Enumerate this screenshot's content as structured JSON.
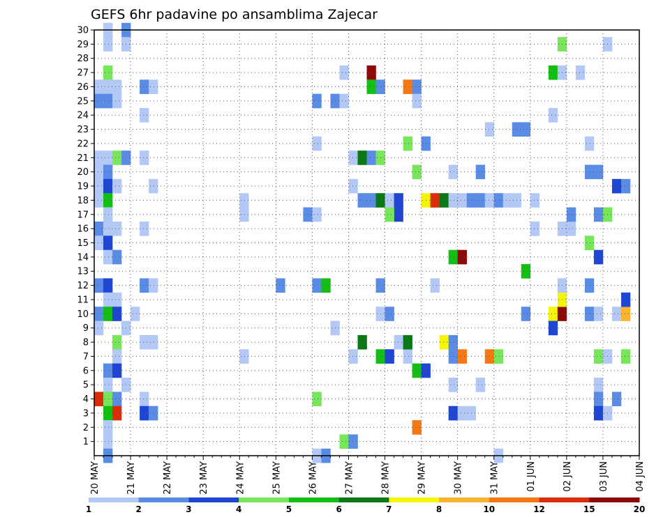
{
  "chart_data": {
    "type": "heatmap",
    "title": "GEFS 6hr padavine po ansamblima Zajecar",
    "xlabel": "",
    "ylabel": "",
    "x_tick_labels": [
      "20 MAY",
      "21 MAY",
      "22 MAY",
      "23 MAY",
      "24 MAY",
      "25 MAY",
      "26 MAY",
      "27 MAY",
      "28 MAY",
      "29 MAY",
      "30 MAY",
      "31 MAY",
      "01 JUN",
      "02 JUN",
      "03 JUN",
      "04 JUN"
    ],
    "y_tick_labels": [
      "1",
      "2",
      "3",
      "4",
      "5",
      "6",
      "7",
      "8",
      "9",
      "10",
      "11",
      "12",
      "13",
      "14",
      "15",
      "16",
      "17",
      "18",
      "19",
      "20",
      "21",
      "22",
      "23",
      "24",
      "25",
      "26",
      "27",
      "28",
      "29",
      "30"
    ],
    "x_range_days": [
      0,
      15
    ],
    "y_range_members": [
      0,
      30
    ],
    "grid": true,
    "color_scale": {
      "levels": [
        "1",
        "2",
        "3",
        "4",
        "5",
        "6",
        "7",
        "8",
        "10",
        "12",
        "15",
        "20"
      ],
      "colors": [
        "#b4c8f5",
        "#5a8ce6",
        "#1e46d2",
        "#78e65a",
        "#14be14",
        "#0a7814",
        "#f5f50a",
        "#fab432",
        "#f57814",
        "#dc2d0a",
        "#8c0a0a"
      ]
    },
    "cells": [
      [
        0.25,
        30,
        0
      ],
      [
        0.25,
        29,
        0
      ],
      [
        0.25,
        30,
        0
      ],
      [
        0.75,
        30,
        1
      ],
      [
        0.75,
        29,
        0
      ],
      [
        0.25,
        27,
        3
      ],
      [
        0.25,
        26,
        0
      ],
      [
        0.0,
        26,
        0
      ],
      [
        0.5,
        26,
        0
      ],
      [
        0.0,
        25,
        1
      ],
      [
        0.25,
        25,
        1
      ],
      [
        0.5,
        25,
        0
      ],
      [
        1.25,
        26,
        1
      ],
      [
        1.5,
        26,
        0
      ],
      [
        1.25,
        24,
        0
      ],
      [
        0.0,
        21,
        0
      ],
      [
        0.25,
        21,
        0
      ],
      [
        0.5,
        21,
        3
      ],
      [
        0.75,
        21,
        1
      ],
      [
        1.25,
        21,
        0
      ],
      [
        0.0,
        20,
        0
      ],
      [
        0.25,
        20,
        1
      ],
      [
        0.0,
        19,
        0
      ],
      [
        0.25,
        19,
        2
      ],
      [
        0.5,
        19,
        0
      ],
      [
        1.5,
        19,
        0
      ],
      [
        0.0,
        18,
        0
      ],
      [
        0.25,
        18,
        4
      ],
      [
        0.25,
        17,
        0
      ],
      [
        0.0,
        16,
        1
      ],
      [
        0.25,
        16,
        0
      ],
      [
        0.5,
        16,
        0
      ],
      [
        1.25,
        16,
        0
      ],
      [
        0.0,
        15,
        0
      ],
      [
        0.25,
        15,
        2
      ],
      [
        0.25,
        14,
        0
      ],
      [
        0.5,
        14,
        1
      ],
      [
        0.0,
        12,
        1
      ],
      [
        0.25,
        12,
        2
      ],
      [
        0.25,
        11,
        0
      ],
      [
        0.5,
        11,
        0
      ],
      [
        0.0,
        10,
        1
      ],
      [
        0.25,
        10,
        4
      ],
      [
        0.5,
        10,
        2
      ],
      [
        1.0,
        10,
        0
      ],
      [
        0.0,
        9,
        0
      ],
      [
        0.75,
        9,
        0
      ],
      [
        0.5,
        8,
        3
      ],
      [
        0.5,
        7,
        0
      ],
      [
        1.25,
        12,
        1
      ],
      [
        1.5,
        12,
        0
      ],
      [
        1.25,
        8,
        0
      ],
      [
        1.5,
        8,
        0
      ],
      [
        0.25,
        6,
        1
      ],
      [
        0.5,
        6,
        2
      ],
      [
        0.25,
        5,
        0
      ],
      [
        0.75,
        5,
        0
      ],
      [
        0.0,
        4,
        9
      ],
      [
        0.25,
        4,
        3
      ],
      [
        0.5,
        4,
        1
      ],
      [
        1.25,
        4,
        0
      ],
      [
        0.25,
        3,
        4
      ],
      [
        0.5,
        3,
        9
      ],
      [
        1.25,
        3,
        2
      ],
      [
        1.5,
        3,
        1
      ],
      [
        0.25,
        2,
        0
      ],
      [
        0.25,
        1,
        0
      ],
      [
        0.25,
        0,
        1
      ],
      [
        4.0,
        18,
        0
      ],
      [
        4.0,
        17,
        0
      ],
      [
        4.0,
        7,
        0
      ],
      [
        5.0,
        12,
        1
      ],
      [
        5.75,
        17,
        1
      ],
      [
        6.0,
        17,
        0
      ],
      [
        6.0,
        25,
        1
      ],
      [
        6.5,
        25,
        1
      ],
      [
        6.75,
        25,
        0
      ],
      [
        6.75,
        27,
        0
      ],
      [
        6.0,
        22,
        0
      ],
      [
        6.0,
        12,
        1
      ],
      [
        6.25,
        12,
        4
      ],
      [
        6.5,
        9,
        0
      ],
      [
        6.0,
        4,
        3
      ],
      [
        6.0,
        0,
        0
      ],
      [
        6.25,
        0,
        1
      ],
      [
        6.75,
        1,
        3
      ],
      [
        7.0,
        1,
        1
      ],
      [
        7.5,
        27,
        10
      ],
      [
        7.5,
        26,
        4
      ],
      [
        7.75,
        26,
        1
      ],
      [
        7.0,
        21,
        0
      ],
      [
        7.25,
        21,
        5
      ],
      [
        7.5,
        21,
        1
      ],
      [
        7.75,
        21,
        3
      ],
      [
        7.0,
        19,
        0
      ],
      [
        7.25,
        18,
        1
      ],
      [
        7.5,
        18,
        1
      ],
      [
        7.75,
        18,
        5
      ],
      [
        8.0,
        18,
        0
      ],
      [
        8.25,
        18,
        2
      ],
      [
        8.25,
        17,
        2
      ],
      [
        8.0,
        17,
        3
      ],
      [
        7.0,
        7,
        0
      ],
      [
        7.75,
        7,
        4
      ],
      [
        8.0,
        7,
        2
      ],
      [
        8.5,
        7,
        0
      ],
      [
        7.25,
        8,
        5
      ],
      [
        8.25,
        8,
        0
      ],
      [
        8.5,
        8,
        5
      ],
      [
        7.75,
        12,
        1
      ],
      [
        7.75,
        10,
        0
      ],
      [
        8.0,
        10,
        1
      ],
      [
        8.5,
        26,
        8
      ],
      [
        8.75,
        26,
        1
      ],
      [
        8.75,
        25,
        0
      ],
      [
        8.5,
        22,
        3
      ],
      [
        9.0,
        22,
        1
      ],
      [
        8.75,
        20,
        3
      ],
      [
        9.0,
        18,
        6
      ],
      [
        9.25,
        18,
        9
      ],
      [
        9.5,
        18,
        5
      ],
      [
        9.75,
        18,
        0
      ],
      [
        10.0,
        18,
        0
      ],
      [
        10.25,
        18,
        1
      ],
      [
        10.5,
        18,
        1
      ],
      [
        10.75,
        18,
        0
      ],
      [
        11.0,
        18,
        1
      ],
      [
        11.25,
        18,
        0
      ],
      [
        11.5,
        18,
        0
      ],
      [
        12.0,
        18,
        0
      ],
      [
        8.75,
        6,
        4
      ],
      [
        9.0,
        6,
        2
      ],
      [
        8.75,
        2,
        8
      ],
      [
        9.25,
        12,
        0
      ],
      [
        9.5,
        8,
        6
      ],
      [
        9.75,
        8,
        1
      ],
      [
        9.75,
        7,
        1
      ],
      [
        10.0,
        7,
        8
      ],
      [
        9.75,
        14,
        4
      ],
      [
        10.0,
        14,
        10
      ],
      [
        9.75,
        20,
        0
      ],
      [
        10.5,
        20,
        1
      ],
      [
        9.75,
        5,
        0
      ],
      [
        10.5,
        5,
        0
      ],
      [
        9.75,
        3,
        2
      ],
      [
        10.0,
        3,
        0
      ],
      [
        10.25,
        3,
        0
      ],
      [
        10.75,
        23,
        0
      ],
      [
        11.5,
        23,
        1
      ],
      [
        11.75,
        23,
        1
      ],
      [
        10.75,
        7,
        8
      ],
      [
        11.0,
        7,
        3
      ],
      [
        11.0,
        0,
        0
      ],
      [
        11.75,
        13,
        4
      ],
      [
        11.75,
        10,
        1
      ],
      [
        12.0,
        16,
        0
      ],
      [
        12.5,
        27,
        4
      ],
      [
        12.5,
        24,
        0
      ],
      [
        12.75,
        29,
        3
      ],
      [
        12.75,
        27,
        0
      ],
      [
        12.75,
        16,
        0
      ],
      [
        13.0,
        16,
        0
      ],
      [
        13.0,
        17,
        1
      ],
      [
        12.5,
        10,
        6
      ],
      [
        12.75,
        10,
        10
      ],
      [
        12.75,
        11,
        6
      ],
      [
        12.5,
        9,
        2
      ],
      [
        12.75,
        12,
        0
      ],
      [
        13.25,
        27,
        0
      ],
      [
        13.5,
        22,
        0
      ],
      [
        13.5,
        20,
        1
      ],
      [
        13.75,
        20,
        1
      ],
      [
        13.75,
        17,
        1
      ],
      [
        14.0,
        17,
        3
      ],
      [
        13.5,
        15,
        3
      ],
      [
        13.75,
        14,
        2
      ],
      [
        13.5,
        12,
        1
      ],
      [
        13.5,
        10,
        1
      ],
      [
        13.75,
        10,
        0
      ],
      [
        14.25,
        10,
        0
      ],
      [
        14.5,
        10,
        7
      ],
      [
        14.5,
        11,
        2
      ],
      [
        13.75,
        7,
        3
      ],
      [
        14.0,
        7,
        0
      ],
      [
        14.5,
        7,
        3
      ],
      [
        13.75,
        5,
        0
      ],
      [
        13.75,
        4,
        1
      ],
      [
        14.25,
        4,
        1
      ],
      [
        13.75,
        3,
        2
      ],
      [
        14.0,
        3,
        0
      ],
      [
        14.0,
        29,
        0
      ],
      [
        14.25,
        19,
        2
      ],
      [
        14.5,
        19,
        1
      ]
    ]
  }
}
